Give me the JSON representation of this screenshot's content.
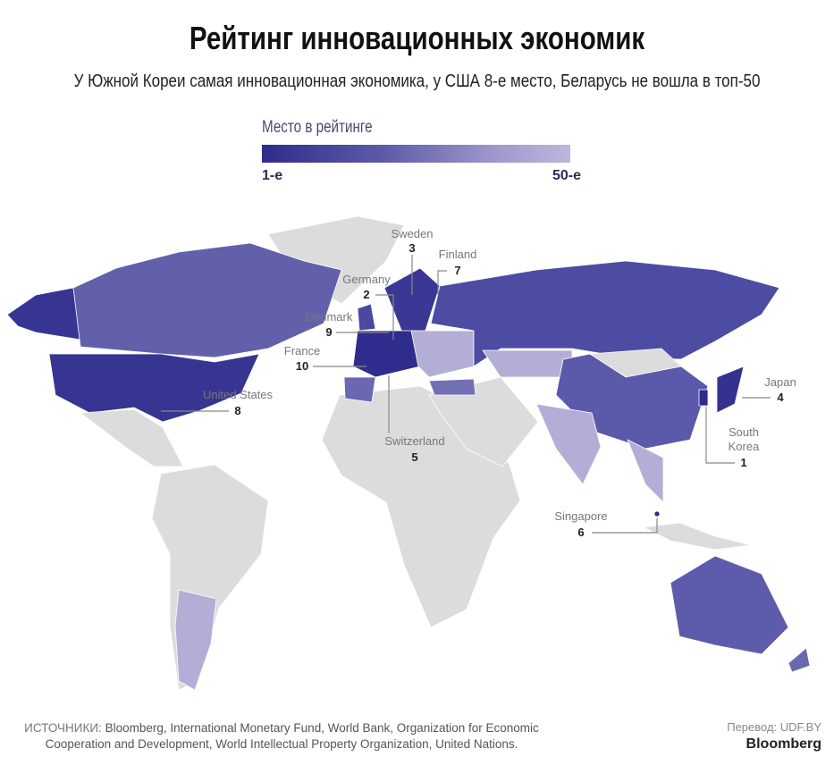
{
  "header": {
    "title": "Рейтинг инновационных экономик",
    "subtitle": "У Южной Кореи самая инновационная экономика, у США 8-е место, Беларусь не вошла в топ-50"
  },
  "legend": {
    "title": "Место в рейтинге",
    "min_label": "1-е",
    "max_label": "50-е",
    "colors": {
      "top": "#2e2c8c",
      "bottom": "#bcb7de",
      "unranked": "#dcdcdc"
    }
  },
  "countries": [
    {
      "name": "Sweden",
      "rank": "3"
    },
    {
      "name": "Finland",
      "rank": "7"
    },
    {
      "name": "Germany",
      "rank": "2"
    },
    {
      "name": "Denmark",
      "rank": "9"
    },
    {
      "name": "France",
      "rank": "10"
    },
    {
      "name": "United States",
      "rank": "8"
    },
    {
      "name": "Switzerland",
      "rank": "5"
    },
    {
      "name": "Japan",
      "rank": "4"
    },
    {
      "name": "South",
      "name2": "Korea",
      "rank": "1"
    },
    {
      "name": "Singapore",
      "rank": "6"
    }
  ],
  "footer": {
    "sources_label": "ИСТОЧНИКИ:",
    "sources": "Bloomberg, International Monetary Fund, World Bank, Organization for Economic Cooperation and Development, World Intellectual Property Organization, United Nations.",
    "translation": "Перевод: UDF.BY",
    "brand": "Bloomberg"
  }
}
